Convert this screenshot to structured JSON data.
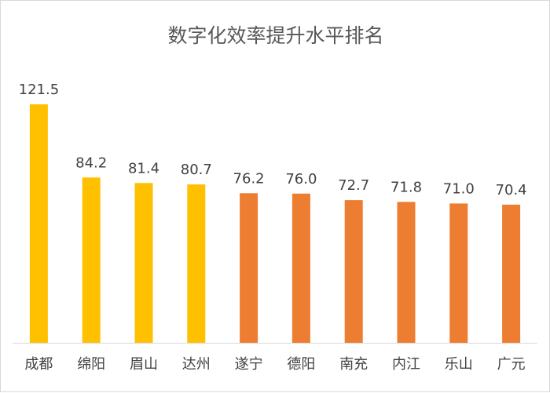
{
  "chart_data": {
    "type": "bar",
    "title": "数字化效率提升水平排名",
    "xlabel": "",
    "ylabel": "",
    "categories": [
      "成都",
      "绵阳",
      "眉山",
      "达州",
      "遂宁",
      "德阳",
      "南充",
      "内江",
      "乐山",
      "广元"
    ],
    "values": [
      121.5,
      84.2,
      81.4,
      80.7,
      76.2,
      76.0,
      72.7,
      71.8,
      71.0,
      70.4
    ],
    "value_labels": [
      "121.5",
      "84.2",
      "81.4",
      "80.7",
      "76.2",
      "76.0",
      "72.7",
      "71.8",
      "71.0",
      "70.4"
    ],
    "bar_colors": [
      "#FFC000",
      "#FFC000",
      "#FFC000",
      "#FFC000",
      "#ED7D31",
      "#ED7D31",
      "#ED7D31",
      "#ED7D31",
      "#ED7D31",
      "#ED7D31"
    ],
    "ylim": [
      0,
      121.5
    ],
    "grid": false,
    "legend": "none",
    "colors": {
      "highlight": "#FFC000",
      "default": "#ED7D31",
      "axis": "#d9d9d9",
      "text": "#404040",
      "title": "#595959"
    }
  }
}
